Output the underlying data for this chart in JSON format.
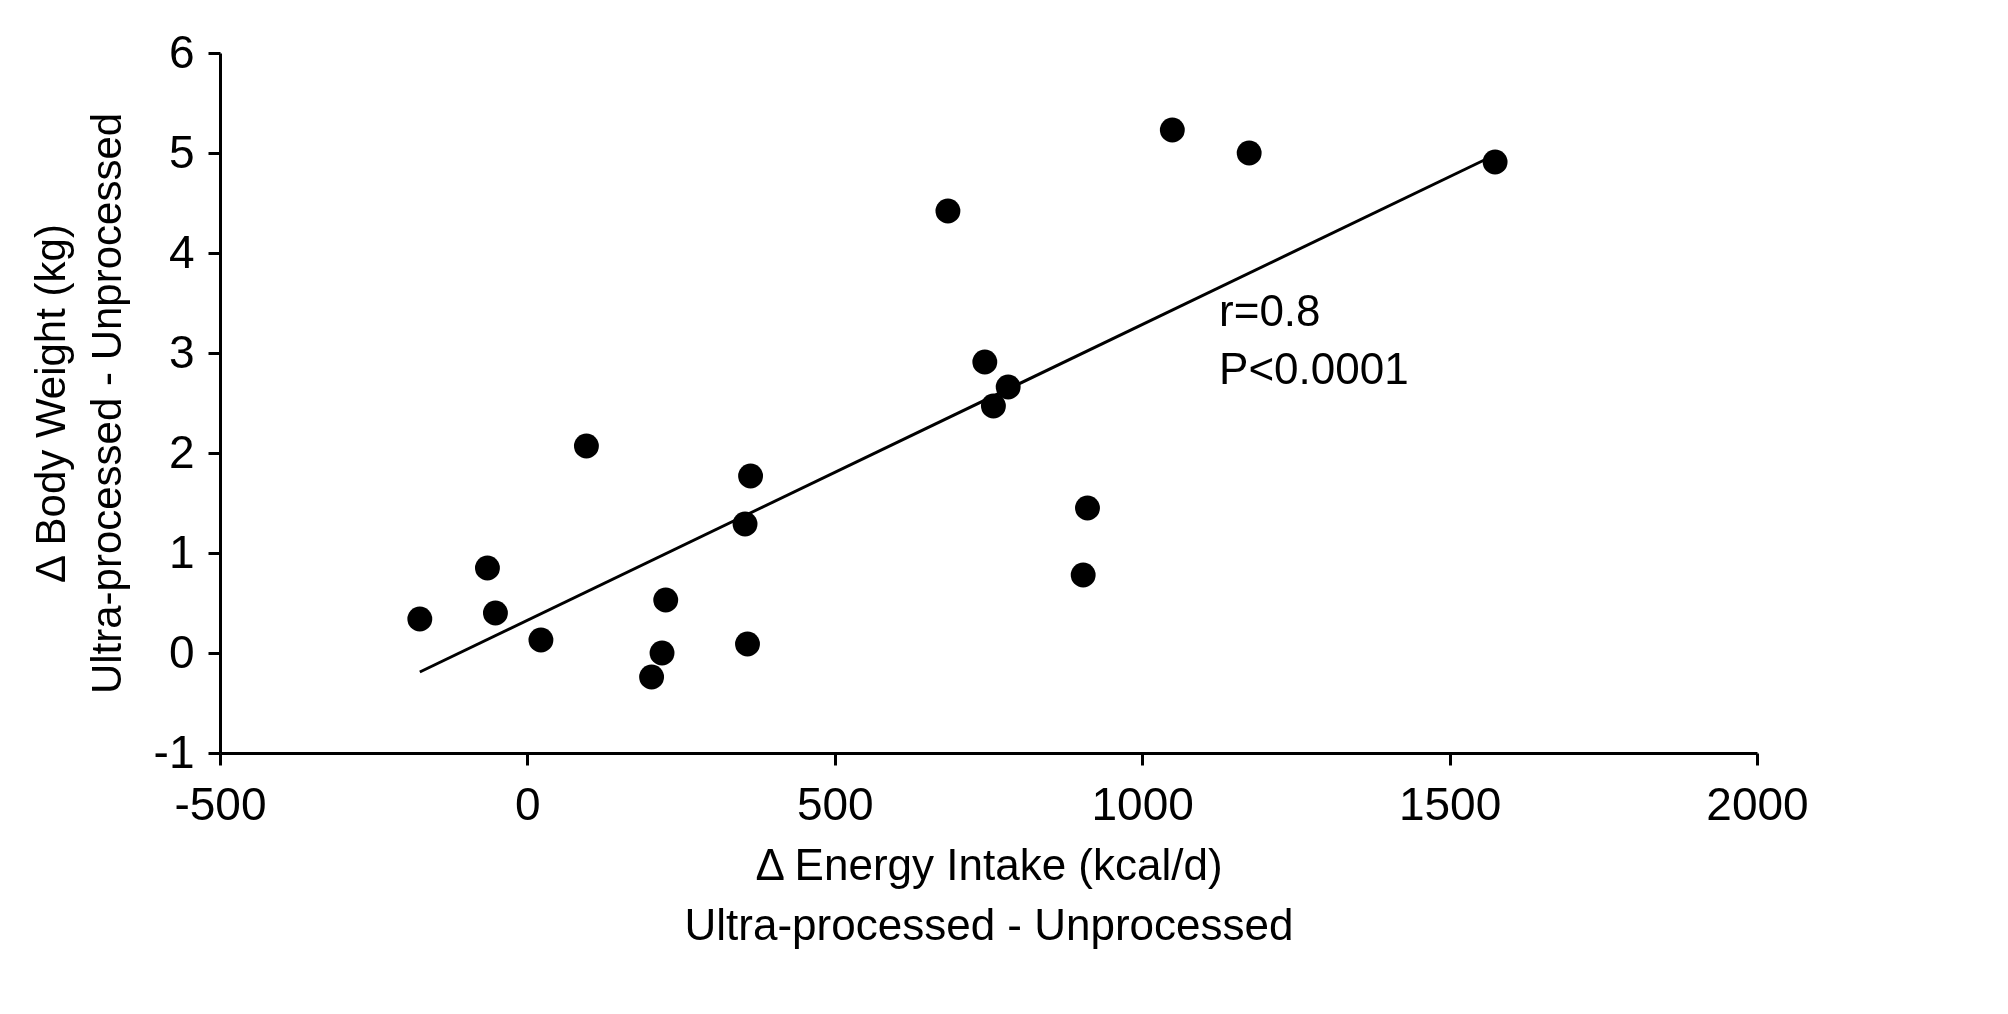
{
  "chart_data": {
    "type": "scatter",
    "xlabel": "Δ Energy Intake (kcal/d)\nUltra-processed - Unprocessed",
    "ylabel": "Δ Body Weight (kg)\nUltra-processed - Unprocessed",
    "xlim": [
      -500,
      2000
    ],
    "xticks": [
      -500,
      0,
      500,
      1000,
      1500,
      2000
    ],
    "ylim": [
      -1,
      6
    ],
    "yticks": [
      -1,
      0,
      1,
      2,
      3,
      4,
      5,
      6
    ],
    "grid": false,
    "marker": "circle",
    "series": [
      {
        "color": "#000000",
        "x": [
          -175,
          -65,
          -52,
          22,
          96,
          202,
          219,
          225,
          354,
          358,
          363,
          684,
          744,
          758,
          782,
          904,
          911,
          1049,
          1174,
          1574
        ],
        "values": [
          0.34,
          0.85,
          0.4,
          0.13,
          2.07,
          -0.24,
          0.0,
          0.53,
          1.29,
          0.09,
          1.77,
          4.42,
          2.91,
          2.47,
          2.66,
          0.78,
          1.45,
          5.23,
          5.0,
          4.91
        ]
      },
      {
        "type": "line",
        "color": "#000000",
        "marker": "none",
        "line_style": "solid",
        "x": [
          -175,
          1570
        ],
        "values": [
          -0.19,
          4.97
        ]
      }
    ],
    "annotations": [
      "r=0.8\nP<0.0001"
    ]
  }
}
